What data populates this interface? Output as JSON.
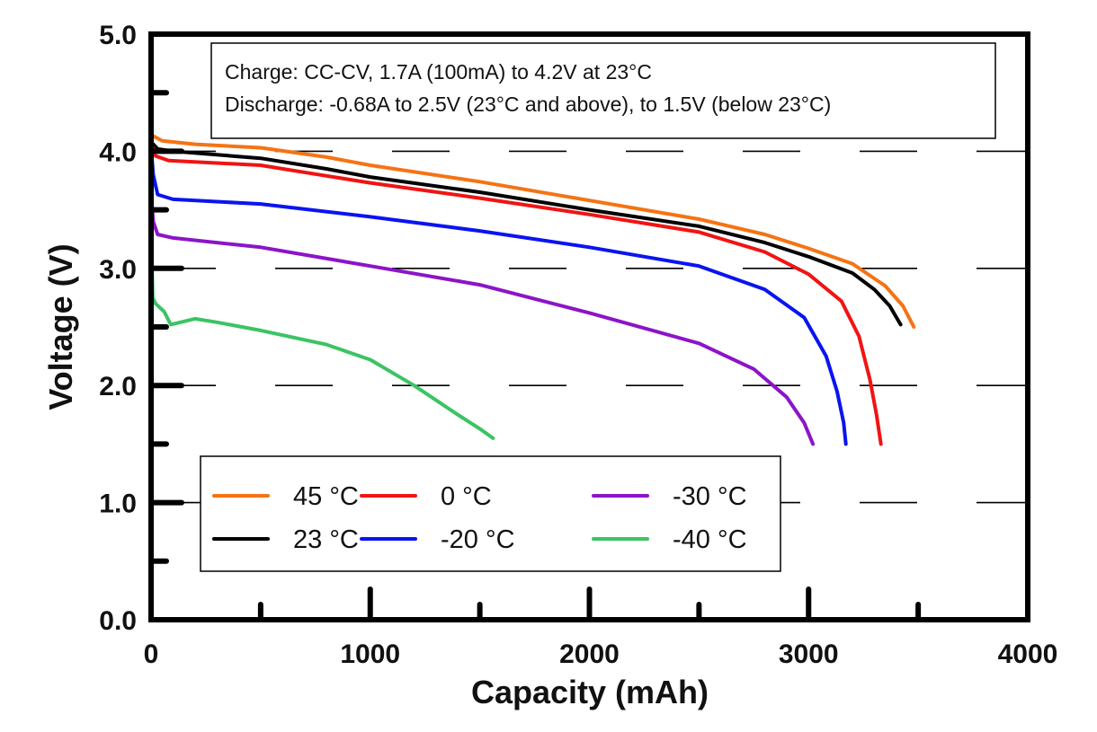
{
  "chart_data": {
    "type": "line",
    "title": "",
    "xlabel": "Capacity (mAh)",
    "ylabel": "Voltage (V)",
    "xlim": [
      0,
      4000
    ],
    "ylim": [
      0,
      5.0
    ],
    "xticks": [
      0,
      1000,
      2000,
      3000,
      4000
    ],
    "xtick_labels": [
      "0",
      "1000",
      "2000",
      "3000",
      "4000"
    ],
    "xminor_ticks": [
      500,
      1500,
      2500,
      3500
    ],
    "yticks": [
      0,
      1.0,
      2.0,
      3.0,
      4.0,
      5.0
    ],
    "ytick_labels": [
      "0.0",
      "1.0",
      "2.0",
      "3.0",
      "4.0",
      "5.0"
    ],
    "yminor_ticks": [
      0.5,
      1.5,
      2.5,
      3.5,
      4.5
    ],
    "grid": "dashed horizontal at major y ticks",
    "annotation": [
      "Charge: CC-CV, 1.7A (100mA) to 4.2V at 23°C",
      "Discharge: -0.68A to 2.5V (23°C and above), to 1.5V (below 23°C)"
    ],
    "legend_position": "bottom-left",
    "series": [
      {
        "name": "45 °C",
        "color": "#f57314",
        "x": [
          0,
          50,
          200,
          500,
          800,
          1000,
          1500,
          2000,
          2500,
          2800,
          3000,
          3200,
          3350,
          3430,
          3480
        ],
        "y": [
          4.14,
          4.09,
          4.06,
          4.03,
          3.95,
          3.88,
          3.74,
          3.58,
          3.42,
          3.29,
          3.17,
          3.04,
          2.85,
          2.68,
          2.5
        ]
      },
      {
        "name": "23 °C",
        "color": "#000000",
        "x": [
          0,
          30,
          100,
          500,
          800,
          1000,
          1500,
          2000,
          2500,
          2800,
          3000,
          3200,
          3300,
          3370,
          3420
        ],
        "y": [
          4.08,
          4.02,
          4.0,
          3.94,
          3.85,
          3.78,
          3.65,
          3.5,
          3.36,
          3.22,
          3.1,
          2.96,
          2.82,
          2.68,
          2.52
        ]
      },
      {
        "name": "0 °C",
        "color": "#f01414",
        "x": [
          0,
          20,
          80,
          500,
          800,
          1000,
          1500,
          2000,
          2500,
          2800,
          3000,
          3150,
          3230,
          3280,
          3310,
          3330
        ],
        "y": [
          4.07,
          3.96,
          3.92,
          3.88,
          3.79,
          3.73,
          3.6,
          3.46,
          3.31,
          3.14,
          2.95,
          2.72,
          2.42,
          2.05,
          1.75,
          1.5
        ]
      },
      {
        "name": "-20 °C",
        "color": "#0a14f0",
        "x": [
          0,
          10,
          30,
          100,
          500,
          1000,
          1500,
          2000,
          2500,
          2800,
          2980,
          3080,
          3130,
          3160,
          3170
        ],
        "y": [
          4.03,
          3.8,
          3.63,
          3.59,
          3.55,
          3.44,
          3.32,
          3.18,
          3.02,
          2.82,
          2.58,
          2.25,
          1.95,
          1.68,
          1.5
        ]
      },
      {
        "name": "-30 °C",
        "color": "#8c14c8",
        "x": [
          0,
          10,
          30,
          100,
          500,
          1000,
          1500,
          2000,
          2500,
          2750,
          2900,
          2980,
          3020
        ],
        "y": [
          3.65,
          3.4,
          3.29,
          3.26,
          3.18,
          3.02,
          2.86,
          2.62,
          2.36,
          2.14,
          1.9,
          1.68,
          1.5
        ]
      },
      {
        "name": "-40 °C",
        "color": "#3cc364",
        "x": [
          0,
          8,
          20,
          60,
          90,
          200,
          300,
          500,
          800,
          1000,
          1200,
          1400,
          1500,
          1560
        ],
        "y": [
          3.35,
          2.75,
          2.7,
          2.63,
          2.52,
          2.57,
          2.54,
          2.47,
          2.35,
          2.22,
          2.0,
          1.75,
          1.63,
          1.55
        ]
      }
    ]
  }
}
